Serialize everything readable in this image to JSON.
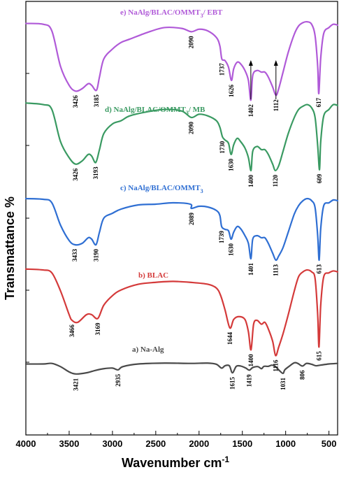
{
  "chart_data": {
    "type": "line",
    "xlabel": "Wavenumber cm",
    "xlabel_sup": "-1",
    "ylabel": "Transmattance %",
    "xlim": [
      4000,
      400
    ],
    "x_ticks": [
      "4000",
      "3500",
      "3000",
      "2500",
      "2000",
      "1500",
      "1000",
      "500"
    ],
    "series": [
      {
        "id": "a",
        "name": "a) Na-Alg",
        "color": "#4a4a4a",
        "points": [
          [
            4000,
            0.06
          ],
          [
            3800,
            0.06
          ],
          [
            3700,
            0.04
          ],
          [
            3600,
            0.15
          ],
          [
            3500,
            0.33
          ],
          [
            3421,
            0.4
          ],
          [
            3300,
            0.36
          ],
          [
            3200,
            0.28
          ],
          [
            3100,
            0.22
          ],
          [
            3000,
            0.2
          ],
          [
            2935,
            0.26
          ],
          [
            2880,
            0.15
          ],
          [
            2700,
            0.06
          ],
          [
            2400,
            0.03
          ],
          [
            2100,
            0.04
          ],
          [
            1900,
            0.03
          ],
          [
            1800,
            0.07
          ],
          [
            1740,
            0.2
          ],
          [
            1700,
            0.12
          ],
          [
            1650,
            0.12
          ],
          [
            1615,
            0.36
          ],
          [
            1570,
            0.14
          ],
          [
            1520,
            0.13
          ],
          [
            1460,
            0.2
          ],
          [
            1419,
            0.27
          ],
          [
            1380,
            0.18
          ],
          [
            1320,
            0.15
          ],
          [
            1280,
            0.22
          ],
          [
            1250,
            0.14
          ],
          [
            1200,
            0.14
          ],
          [
            1160,
            0.1
          ],
          [
            1120,
            0.14
          ],
          [
            1080,
            0.26
          ],
          [
            1031,
            0.38
          ],
          [
            1010,
            0.26
          ],
          [
            960,
            0.14
          ],
          [
            900,
            0.02
          ],
          [
            860,
            0.04
          ],
          [
            806,
            0.13
          ],
          [
            760,
            0.04
          ],
          [
            700,
            0.07
          ],
          [
            650,
            0.12
          ],
          [
            600,
            0.1
          ],
          [
            500,
            0.06
          ],
          [
            400,
            0.04
          ]
        ],
        "annotations": [
          {
            "x": 3421,
            "label": "3421"
          },
          {
            "x": 2935,
            "label": "2935"
          },
          {
            "x": 1615,
            "label": "1615"
          },
          {
            "x": 1419,
            "label": "1419"
          },
          {
            "x": 1031,
            "label": "1031"
          },
          {
            "x": 806,
            "label": "806"
          }
        ]
      },
      {
        "id": "b",
        "name": "b) BLAC",
        "color": "#d43a3a",
        "points": [
          [
            4000,
            0.02
          ],
          [
            3800,
            0.03
          ],
          [
            3700,
            0.06
          ],
          [
            3600,
            0.25
          ],
          [
            3500,
            0.5
          ],
          [
            3466,
            0.56
          ],
          [
            3400,
            0.58
          ],
          [
            3300,
            0.5
          ],
          [
            3240,
            0.5
          ],
          [
            3169,
            0.54
          ],
          [
            3100,
            0.4
          ],
          [
            3000,
            0.3
          ],
          [
            2900,
            0.24
          ],
          [
            2700,
            0.18
          ],
          [
            2500,
            0.16
          ],
          [
            2300,
            0.15
          ],
          [
            2100,
            0.16
          ],
          [
            1900,
            0.18
          ],
          [
            1800,
            0.22
          ],
          [
            1750,
            0.3
          ],
          [
            1700,
            0.45
          ],
          [
            1644,
            0.64
          ],
          [
            1600,
            0.55
          ],
          [
            1540,
            0.52
          ],
          [
            1470,
            0.55
          ],
          [
            1430,
            0.68
          ],
          [
            1400,
            0.87
          ],
          [
            1370,
            0.6
          ],
          [
            1330,
            0.56
          ],
          [
            1280,
            0.6
          ],
          [
            1240,
            0.58
          ],
          [
            1200,
            0.65
          ],
          [
            1150,
            0.78
          ],
          [
            1116,
            0.93
          ],
          [
            1080,
            0.84
          ],
          [
            1030,
            0.7
          ],
          [
            970,
            0.5
          ],
          [
            900,
            0.25
          ],
          [
            850,
            0.1
          ],
          [
            800,
            0.05
          ],
          [
            750,
            0.03
          ],
          [
            700,
            0.05
          ],
          [
            660,
            0.12
          ],
          [
            630,
            0.5
          ],
          [
            615,
            0.84
          ],
          [
            595,
            0.4
          ],
          [
            560,
            0.1
          ],
          [
            500,
            0.06
          ],
          [
            450,
            0.04
          ],
          [
            400,
            0.05
          ]
        ],
        "annotations": [
          {
            "x": 3466,
            "label": "3466"
          },
          {
            "x": 3169,
            "label": "3169"
          },
          {
            "x": 1644,
            "label": "1644"
          },
          {
            "x": 1400,
            "label": "1400"
          },
          {
            "x": 1116,
            "label": "1116"
          },
          {
            "x": 615,
            "label": "615"
          }
        ]
      },
      {
        "id": "c",
        "name": "c) NaAlg/BLAC/OMMT",
        "name_sub": "3",
        "color": "#2f6fd3",
        "points": [
          [
            4000,
            0.02
          ],
          [
            3800,
            0.03
          ],
          [
            3700,
            0.08
          ],
          [
            3600,
            0.4
          ],
          [
            3500,
            0.62
          ],
          [
            3433,
            0.68
          ],
          [
            3350,
            0.66
          ],
          [
            3280,
            0.58
          ],
          [
            3240,
            0.6
          ],
          [
            3190,
            0.68
          ],
          [
            3150,
            0.5
          ],
          [
            3100,
            0.3
          ],
          [
            3000,
            0.23
          ],
          [
            2900,
            0.17
          ],
          [
            2700,
            0.11
          ],
          [
            2500,
            0.1
          ],
          [
            2300,
            0.08
          ],
          [
            2100,
            0.1
          ],
          [
            2089,
            0.16
          ],
          [
            2000,
            0.13
          ],
          [
            1900,
            0.14
          ],
          [
            1800,
            0.19
          ],
          [
            1760,
            0.26
          ],
          [
            1739,
            0.42
          ],
          [
            1700,
            0.46
          ],
          [
            1660,
            0.48
          ],
          [
            1630,
            0.6
          ],
          [
            1600,
            0.5
          ],
          [
            1560,
            0.42
          ],
          [
            1520,
            0.45
          ],
          [
            1470,
            0.55
          ],
          [
            1430,
            0.66
          ],
          [
            1401,
            0.88
          ],
          [
            1380,
            0.6
          ],
          [
            1330,
            0.55
          ],
          [
            1280,
            0.58
          ],
          [
            1240,
            0.58
          ],
          [
            1200,
            0.66
          ],
          [
            1150,
            0.8
          ],
          [
            1113,
            0.9
          ],
          [
            1080,
            0.84
          ],
          [
            1030,
            0.72
          ],
          [
            970,
            0.5
          ],
          [
            900,
            0.24
          ],
          [
            850,
            0.12
          ],
          [
            800,
            0.05
          ],
          [
            750,
            0.02
          ],
          [
            700,
            0.05
          ],
          [
            660,
            0.15
          ],
          [
            630,
            0.55
          ],
          [
            613,
            0.9
          ],
          [
            595,
            0.45
          ],
          [
            560,
            0.12
          ],
          [
            500,
            0.08
          ],
          [
            450,
            0.04
          ],
          [
            400,
            0.05
          ]
        ],
        "annotations": [
          {
            "x": 3433,
            "label": "3433"
          },
          {
            "x": 3190,
            "label": "3190"
          },
          {
            "x": 2089,
            "label": "2089"
          },
          {
            "x": 1739,
            "label": "1739"
          },
          {
            "x": 1630,
            "label": "1630"
          },
          {
            "x": 1401,
            "label": "1401"
          },
          {
            "x": 1113,
            "label": "1113"
          },
          {
            "x": 613,
            "label": "613"
          }
        ]
      },
      {
        "id": "d",
        "name": "d) NaAlg/BLAC/OMMT",
        "name_sub": "3",
        "name_suffix": "/ MB",
        "color": "#3a9a62",
        "points": [
          [
            4000,
            0.02
          ],
          [
            3800,
            0.04
          ],
          [
            3700,
            0.1
          ],
          [
            3600,
            0.5
          ],
          [
            3500,
            0.7
          ],
          [
            3426,
            0.78
          ],
          [
            3350,
            0.74
          ],
          [
            3280,
            0.66
          ],
          [
            3240,
            0.68
          ],
          [
            3193,
            0.76
          ],
          [
            3150,
            0.6
          ],
          [
            3100,
            0.4
          ],
          [
            3000,
            0.28
          ],
          [
            2900,
            0.24
          ],
          [
            2800,
            0.18
          ],
          [
            2600,
            0.13
          ],
          [
            2400,
            0.1
          ],
          [
            2200,
            0.12
          ],
          [
            2090,
            0.2
          ],
          [
            2000,
            0.16
          ],
          [
            1900,
            0.18
          ],
          [
            1800,
            0.24
          ],
          [
            1760,
            0.32
          ],
          [
            1730,
            0.44
          ],
          [
            1700,
            0.48
          ],
          [
            1660,
            0.52
          ],
          [
            1630,
            0.66
          ],
          [
            1600,
            0.54
          ],
          [
            1560,
            0.46
          ],
          [
            1520,
            0.5
          ],
          [
            1470,
            0.58
          ],
          [
            1430,
            0.7
          ],
          [
            1400,
            0.86
          ],
          [
            1380,
            0.62
          ],
          [
            1330,
            0.56
          ],
          [
            1280,
            0.6
          ],
          [
            1240,
            0.6
          ],
          [
            1200,
            0.66
          ],
          [
            1150,
            0.78
          ],
          [
            1120,
            0.86
          ],
          [
            1080,
            0.8
          ],
          [
            1030,
            0.62
          ],
          [
            970,
            0.4
          ],
          [
            900,
            0.2
          ],
          [
            850,
            0.1
          ],
          [
            800,
            0.06
          ],
          [
            750,
            0.04
          ],
          [
            700,
            0.08
          ],
          [
            660,
            0.2
          ],
          [
            630,
            0.55
          ],
          [
            609,
            0.85
          ],
          [
            595,
            0.5
          ],
          [
            560,
            0.18
          ],
          [
            500,
            0.1
          ],
          [
            450,
            0.04
          ],
          [
            400,
            0.05
          ]
        ],
        "annotations": [
          {
            "x": 3426,
            "label": "3426"
          },
          {
            "x": 3193,
            "label": "3193"
          },
          {
            "x": 2090,
            "label": "2090"
          },
          {
            "x": 1730,
            "label": "1730"
          },
          {
            "x": 1630,
            "label": "1630"
          },
          {
            "x": 1400,
            "label": "1400"
          },
          {
            "x": 1120,
            "label": "1120"
          },
          {
            "x": 609,
            "label": "609"
          }
        ]
      },
      {
        "id": "e",
        "name": "e) NaAlg/BLAC/OMMT",
        "name_sub": "3",
        "name_suffix": "/ EBT",
        "color": "#b05ad8",
        "points": [
          [
            4000,
            0.03
          ],
          [
            3800,
            0.04
          ],
          [
            3700,
            0.12
          ],
          [
            3600,
            0.55
          ],
          [
            3500,
            0.78
          ],
          [
            3426,
            0.85
          ],
          [
            3350,
            0.82
          ],
          [
            3280,
            0.76
          ],
          [
            3240,
            0.78
          ],
          [
            3185,
            0.84
          ],
          [
            3150,
            0.68
          ],
          [
            3100,
            0.46
          ],
          [
            3000,
            0.34
          ],
          [
            2900,
            0.26
          ],
          [
            2800,
            0.22
          ],
          [
            2600,
            0.14
          ],
          [
            2400,
            0.08
          ],
          [
            2200,
            0.09
          ],
          [
            2090,
            0.13
          ],
          [
            2000,
            0.1
          ],
          [
            1900,
            0.12
          ],
          [
            1800,
            0.2
          ],
          [
            1760,
            0.3
          ],
          [
            1737,
            0.46
          ],
          [
            1700,
            0.48
          ],
          [
            1660,
            0.56
          ],
          [
            1626,
            0.72
          ],
          [
            1600,
            0.58
          ],
          [
            1560,
            0.5
          ],
          [
            1520,
            0.52
          ],
          [
            1470,
            0.6
          ],
          [
            1430,
            0.72
          ],
          [
            1402,
            0.96
          ],
          [
            1380,
            0.66
          ],
          [
            1330,
            0.6
          ],
          [
            1280,
            0.62
          ],
          [
            1240,
            0.62
          ],
          [
            1200,
            0.68
          ],
          [
            1150,
            0.8
          ],
          [
            1112,
            0.9
          ],
          [
            1080,
            0.82
          ],
          [
            1030,
            0.62
          ],
          [
            970,
            0.38
          ],
          [
            900,
            0.16
          ],
          [
            850,
            0.06
          ],
          [
            800,
            0.02
          ],
          [
            750,
            0.01
          ],
          [
            700,
            0.04
          ],
          [
            660,
            0.18
          ],
          [
            630,
            0.55
          ],
          [
            617,
            0.88
          ],
          [
            595,
            0.45
          ],
          [
            560,
            0.15
          ],
          [
            500,
            0.08
          ],
          [
            450,
            0.04
          ],
          [
            400,
            0.05
          ]
        ],
        "annotations": [
          {
            "x": 3426,
            "label": "3426"
          },
          {
            "x": 3185,
            "label": "3185"
          },
          {
            "x": 2090,
            "label": "2090"
          },
          {
            "x": 1737,
            "label": "1737"
          },
          {
            "x": 1626,
            "label": "1626"
          },
          {
            "x": 1402,
            "label": "1402"
          },
          {
            "x": 1112,
            "label": "1112"
          },
          {
            "x": 617,
            "label": "617"
          }
        ]
      }
    ]
  }
}
